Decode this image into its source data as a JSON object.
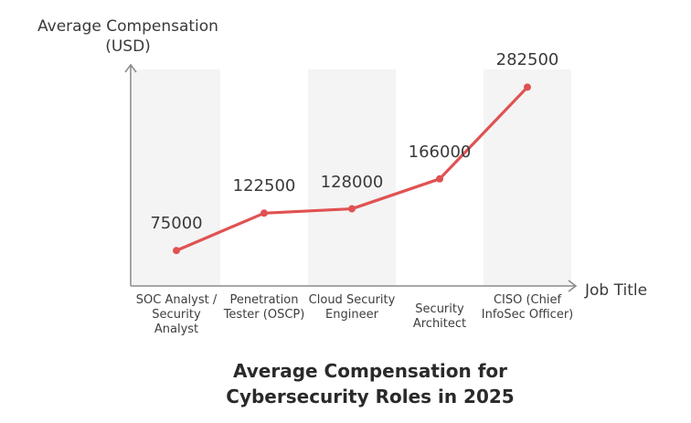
{
  "chart_data": {
    "type": "line",
    "title_line1": "Average Compensation for",
    "title_line2": "Cybersecurity Roles in 2025",
    "ylabel_line1": "Average Compensation",
    "ylabel_line2": "(USD)",
    "xlabel": "Job Title",
    "categories": [
      "SOC Analyst / Security Analyst",
      "Penetration Tester (OSCP)",
      "Cloud Security Engineer",
      "Security Architect",
      "CISO (Chief InfoSec Officer)"
    ],
    "values": [
      75000,
      122500,
      128000,
      166000,
      282500
    ],
    "value_labels": [
      "75000",
      "122500",
      "128000",
      "166000",
      "282500"
    ],
    "ylim": [
      30000,
      312000
    ],
    "grid": false,
    "legend": "none",
    "colors": {
      "line": "#e05252",
      "band": "#f4f4f4",
      "axis": "#8c8c8c"
    }
  }
}
